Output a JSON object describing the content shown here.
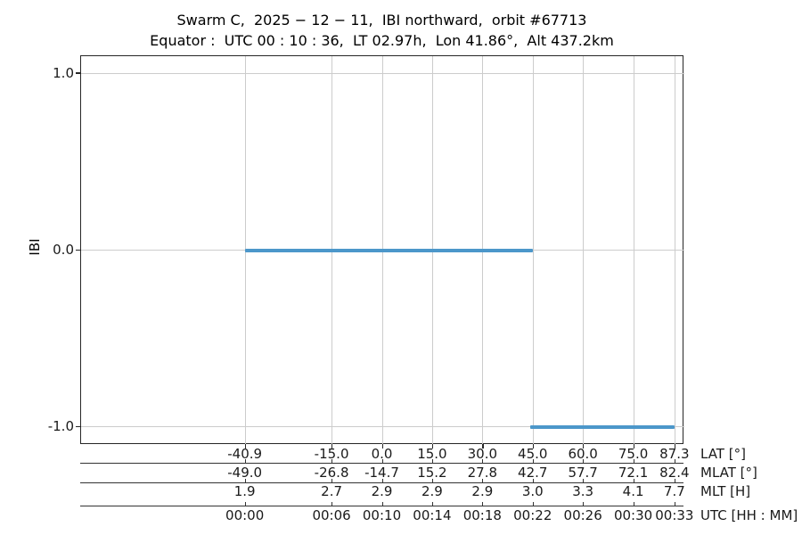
{
  "figure": {
    "title": "Swarm C,  2025 − 12 − 11,  IBI northward,  orbit #67713",
    "subtitle": "Equator :  UTC 00 : 10 : 36,  LT 02.97h,  Lon 41.86°,  Alt 437.2km"
  },
  "chart_data": {
    "type": "line",
    "title": "Swarm C, 2025-12-11, IBI northward, orbit #67713",
    "subtitle": "Equator: UTC 00:10:36, LT 02.97h, Lon 41.86°, Alt 437.2km",
    "ylabel": "IBI",
    "ylim": [
      -1.1,
      1.1
    ],
    "grid": true,
    "yticks": [
      {
        "value": 1.0,
        "label": "1.0"
      },
      {
        "value": 0.0,
        "label": "0.0"
      },
      {
        "value": -1.0,
        "label": "-1.0"
      }
    ],
    "x_axis": {
      "quantity": "latitude_deg",
      "range": [
        -90,
        90
      ]
    },
    "tick_lats": [
      -40.9,
      -15.0,
      0.0,
      15.0,
      30.0,
      45.0,
      60.0,
      75.0,
      87.3
    ],
    "series": [
      {
        "name": "IBI",
        "color": "#4c97ca",
        "segments": [
          {
            "lat_start": -40.9,
            "lat_end": 45.1,
            "value": 0.0
          },
          {
            "lat_start": 44.4,
            "lat_end": 87.3,
            "value": -1.0
          }
        ]
      }
    ],
    "axis_rows": [
      {
        "label": "LAT [°]",
        "values": [
          "-40.9",
          "-15.0",
          "0.0",
          "15.0",
          "30.0",
          "45.0",
          "60.0",
          "75.0",
          "87.3"
        ]
      },
      {
        "label": "MLAT [°]",
        "values": [
          "-49.0",
          "-26.8",
          "-14.7",
          "15.2",
          "27.8",
          "42.7",
          "57.7",
          "72.1",
          "82.4"
        ]
      },
      {
        "label": "MLT [H]",
        "values": [
          "1.9",
          "2.7",
          "2.9",
          "2.9",
          "2.9",
          "3.0",
          "3.3",
          "4.1",
          "7.7"
        ]
      },
      {
        "label": "UTC [HH : MM]",
        "values": [
          "00:00",
          "00:06",
          "00:10",
          "00:14",
          "00:18",
          "00:22",
          "00:26",
          "00:30",
          "00:33"
        ]
      }
    ],
    "colors": {
      "line": "#4c97ca",
      "grid": "#cccccc",
      "spine": "#262626",
      "text": "#1a1a1a"
    },
    "legend": null
  }
}
